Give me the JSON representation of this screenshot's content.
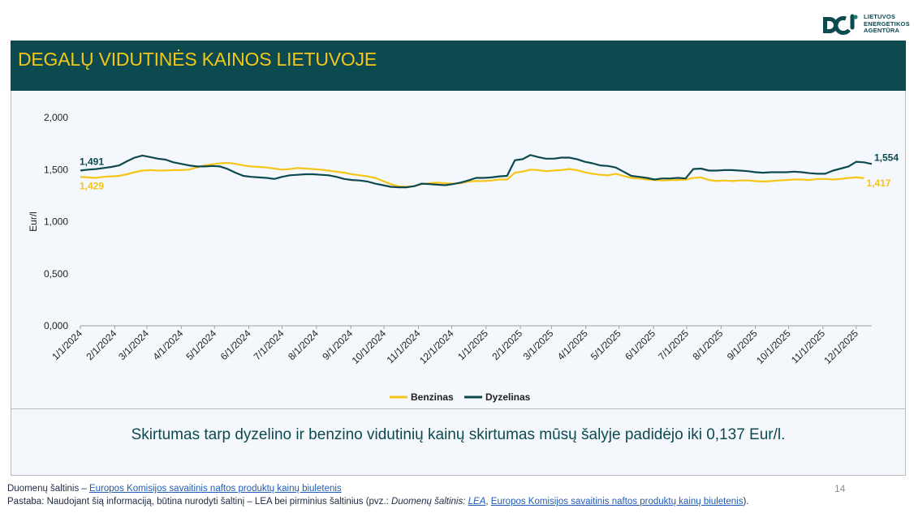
{
  "logo": {
    "line1": "LIETUVOS",
    "line2": "ENERGETIKOS",
    "line3": "AGENTŪRA"
  },
  "header": {
    "title": "DEGALŲ VIDUTINĖS KAINOS LIETUVOJE"
  },
  "chart_data": {
    "type": "line",
    "title": "",
    "xlabel": "",
    "ylabel": "Eur/l",
    "ylim": [
      0,
      2
    ],
    "y_ticks": [
      "0,000",
      "0,500",
      "1,000",
      "1,500",
      "2,000"
    ],
    "y_tick_values": [
      0,
      0.5,
      1,
      1.5,
      2
    ],
    "x_tick_labels": [
      "1/1/2024",
      "2/1/2024",
      "3/1/2024",
      "4/1/2024",
      "5/1/2024",
      "6/1/2024",
      "7/1/2024",
      "8/1/2024",
      "9/1/2024",
      "10/1/2024",
      "11/1/2024",
      "12/1/2024",
      "1/1/2025",
      "2/1/2025",
      "3/1/2025",
      "4/1/2025",
      "5/1/2025",
      "6/1/2025",
      "7/1/2025",
      "8/1/2025",
      "9/1/2025",
      "10/1/2025",
      "11/1/2025",
      "12/1/2025"
    ],
    "grid": false,
    "legend_position": "bottom",
    "series": [
      {
        "name": "Benzinas",
        "color": "#f5c518",
        "start_label": "1,429",
        "end_label": "1,417",
        "points": [
          [
            "2024-01-01",
            1.429
          ],
          [
            "2024-01-08",
            1.425
          ],
          [
            "2024-01-15",
            1.42
          ],
          [
            "2024-01-22",
            1.43
          ],
          [
            "2024-01-29",
            1.435
          ],
          [
            "2024-02-05",
            1.44
          ],
          [
            "2024-02-12",
            1.455
          ],
          [
            "2024-02-19",
            1.475
          ],
          [
            "2024-02-26",
            1.49
          ],
          [
            "2024-03-04",
            1.495
          ],
          [
            "2024-03-11",
            1.49
          ],
          [
            "2024-03-18",
            1.492
          ],
          [
            "2024-03-25",
            1.495
          ],
          [
            "2024-04-01",
            1.495
          ],
          [
            "2024-04-08",
            1.5
          ],
          [
            "2024-04-15",
            1.52
          ],
          [
            "2024-04-22",
            1.54
          ],
          [
            "2024-04-29",
            1.55
          ],
          [
            "2024-05-06",
            1.56
          ],
          [
            "2024-05-13",
            1.565
          ],
          [
            "2024-05-20",
            1.555
          ],
          [
            "2024-05-27",
            1.54
          ],
          [
            "2024-06-03",
            1.53
          ],
          [
            "2024-06-10",
            1.525
          ],
          [
            "2024-06-17",
            1.52
          ],
          [
            "2024-06-24",
            1.51
          ],
          [
            "2024-07-01",
            1.5
          ],
          [
            "2024-07-08",
            1.505
          ],
          [
            "2024-07-15",
            1.515
          ],
          [
            "2024-07-22",
            1.51
          ],
          [
            "2024-07-29",
            1.505
          ],
          [
            "2024-08-05",
            1.5
          ],
          [
            "2024-08-12",
            1.49
          ],
          [
            "2024-08-19",
            1.48
          ],
          [
            "2024-08-26",
            1.47
          ],
          [
            "2024-09-02",
            1.455
          ],
          [
            "2024-09-09",
            1.445
          ],
          [
            "2024-09-16",
            1.435
          ],
          [
            "2024-09-23",
            1.42
          ],
          [
            "2024-09-30",
            1.39
          ],
          [
            "2024-10-07",
            1.36
          ],
          [
            "2024-10-14",
            1.34
          ],
          [
            "2024-10-21",
            1.335
          ],
          [
            "2024-10-28",
            1.34
          ],
          [
            "2024-11-04",
            1.36
          ],
          [
            "2024-11-11",
            1.37
          ],
          [
            "2024-11-18",
            1.375
          ],
          [
            "2024-11-25",
            1.37
          ],
          [
            "2024-12-02",
            1.365
          ],
          [
            "2024-12-09",
            1.37
          ],
          [
            "2024-12-16",
            1.385
          ],
          [
            "2024-12-23",
            1.39
          ],
          [
            "2024-12-30",
            1.39
          ],
          [
            "2025-01-06",
            1.395
          ],
          [
            "2025-01-13",
            1.405
          ],
          [
            "2025-01-20",
            1.405
          ],
          [
            "2025-01-27",
            1.47
          ],
          [
            "2025-02-03",
            1.48
          ],
          [
            "2025-02-10",
            1.5
          ],
          [
            "2025-02-17",
            1.495
          ],
          [
            "2025-02-24",
            1.485
          ],
          [
            "2025-03-03",
            1.49
          ],
          [
            "2025-03-10",
            1.495
          ],
          [
            "2025-03-17",
            1.505
          ],
          [
            "2025-03-24",
            1.495
          ],
          [
            "2025-03-31",
            1.475
          ],
          [
            "2025-04-07",
            1.46
          ],
          [
            "2025-04-14",
            1.45
          ],
          [
            "2025-04-21",
            1.445
          ],
          [
            "2025-04-28",
            1.46
          ],
          [
            "2025-05-05",
            1.44
          ],
          [
            "2025-05-12",
            1.42
          ],
          [
            "2025-05-19",
            1.415
          ],
          [
            "2025-05-26",
            1.405
          ],
          [
            "2025-06-02",
            1.4
          ],
          [
            "2025-06-09",
            1.395
          ],
          [
            "2025-06-16",
            1.4
          ],
          [
            "2025-06-23",
            1.4
          ],
          [
            "2025-06-30",
            1.405
          ],
          [
            "2025-07-07",
            1.42
          ],
          [
            "2025-07-14",
            1.425
          ],
          [
            "2025-07-21",
            1.4
          ],
          [
            "2025-07-28",
            1.39
          ],
          [
            "2025-08-04",
            1.395
          ],
          [
            "2025-08-11",
            1.39
          ],
          [
            "2025-08-18",
            1.395
          ],
          [
            "2025-08-25",
            1.395
          ],
          [
            "2025-09-01",
            1.39
          ],
          [
            "2025-09-08",
            1.385
          ],
          [
            "2025-09-15",
            1.39
          ],
          [
            "2025-09-22",
            1.395
          ],
          [
            "2025-09-29",
            1.4
          ],
          [
            "2025-10-06",
            1.405
          ],
          [
            "2025-10-13",
            1.405
          ],
          [
            "2025-10-20",
            1.4
          ],
          [
            "2025-10-27",
            1.41
          ],
          [
            "2025-11-03",
            1.41
          ],
          [
            "2025-11-10",
            1.405
          ],
          [
            "2025-11-17",
            1.41
          ],
          [
            "2025-11-24",
            1.42
          ],
          [
            "2025-12-01",
            1.425
          ],
          [
            "2025-12-08",
            1.417
          ]
        ]
      },
      {
        "name": "Dyzelinas",
        "color": "#0d4a4f",
        "start_label": "1,491",
        "end_label": "1,554",
        "points": [
          [
            "2024-01-01",
            1.491
          ],
          [
            "2024-01-08",
            1.5
          ],
          [
            "2024-01-15",
            1.505
          ],
          [
            "2024-01-22",
            1.515
          ],
          [
            "2024-01-29",
            1.525
          ],
          [
            "2024-02-05",
            1.54
          ],
          [
            "2024-02-12",
            1.58
          ],
          [
            "2024-02-19",
            1.615
          ],
          [
            "2024-02-26",
            1.635
          ],
          [
            "2024-03-04",
            1.62
          ],
          [
            "2024-03-11",
            1.605
          ],
          [
            "2024-03-18",
            1.595
          ],
          [
            "2024-03-25",
            1.57
          ],
          [
            "2024-04-01",
            1.555
          ],
          [
            "2024-04-08",
            1.54
          ],
          [
            "2024-04-15",
            1.53
          ],
          [
            "2024-04-22",
            1.53
          ],
          [
            "2024-04-29",
            1.535
          ],
          [
            "2024-05-06",
            1.53
          ],
          [
            "2024-05-13",
            1.505
          ],
          [
            "2024-05-20",
            1.47
          ],
          [
            "2024-05-27",
            1.44
          ],
          [
            "2024-06-03",
            1.43
          ],
          [
            "2024-06-10",
            1.425
          ],
          [
            "2024-06-17",
            1.42
          ],
          [
            "2024-06-24",
            1.41
          ],
          [
            "2024-07-01",
            1.43
          ],
          [
            "2024-07-08",
            1.445
          ],
          [
            "2024-07-15",
            1.45
          ],
          [
            "2024-07-22",
            1.455
          ],
          [
            "2024-07-29",
            1.455
          ],
          [
            "2024-08-05",
            1.45
          ],
          [
            "2024-08-12",
            1.445
          ],
          [
            "2024-08-19",
            1.43
          ],
          [
            "2024-08-26",
            1.41
          ],
          [
            "2024-09-02",
            1.4
          ],
          [
            "2024-09-09",
            1.395
          ],
          [
            "2024-09-16",
            1.385
          ],
          [
            "2024-09-23",
            1.365
          ],
          [
            "2024-09-30",
            1.35
          ],
          [
            "2024-10-07",
            1.335
          ],
          [
            "2024-10-14",
            1.33
          ],
          [
            "2024-10-21",
            1.33
          ],
          [
            "2024-10-28",
            1.34
          ],
          [
            "2024-11-04",
            1.365
          ],
          [
            "2024-11-11",
            1.36
          ],
          [
            "2024-11-18",
            1.355
          ],
          [
            "2024-11-25",
            1.35
          ],
          [
            "2024-12-02",
            1.36
          ],
          [
            "2024-12-09",
            1.375
          ],
          [
            "2024-12-16",
            1.395
          ],
          [
            "2024-12-23",
            1.42
          ],
          [
            "2024-12-30",
            1.42
          ],
          [
            "2025-01-06",
            1.425
          ],
          [
            "2025-01-13",
            1.435
          ],
          [
            "2025-01-20",
            1.44
          ],
          [
            "2025-01-27",
            1.59
          ],
          [
            "2025-02-03",
            1.6
          ],
          [
            "2025-02-10",
            1.64
          ],
          [
            "2025-02-17",
            1.62
          ],
          [
            "2025-02-24",
            1.605
          ],
          [
            "2025-03-03",
            1.605
          ],
          [
            "2025-03-10",
            1.615
          ],
          [
            "2025-03-17",
            1.615
          ],
          [
            "2025-03-24",
            1.6
          ],
          [
            "2025-03-31",
            1.575
          ],
          [
            "2025-04-07",
            1.56
          ],
          [
            "2025-04-14",
            1.54
          ],
          [
            "2025-04-21",
            1.535
          ],
          [
            "2025-04-28",
            1.52
          ],
          [
            "2025-05-05",
            1.48
          ],
          [
            "2025-05-12",
            1.44
          ],
          [
            "2025-05-19",
            1.43
          ],
          [
            "2025-05-26",
            1.42
          ],
          [
            "2025-06-02",
            1.405
          ],
          [
            "2025-06-09",
            1.415
          ],
          [
            "2025-06-16",
            1.415
          ],
          [
            "2025-06-23",
            1.42
          ],
          [
            "2025-06-30",
            1.415
          ],
          [
            "2025-07-07",
            1.505
          ],
          [
            "2025-07-14",
            1.51
          ],
          [
            "2025-07-21",
            1.49
          ],
          [
            "2025-07-28",
            1.49
          ],
          [
            "2025-08-04",
            1.495
          ],
          [
            "2025-08-11",
            1.495
          ],
          [
            "2025-08-18",
            1.49
          ],
          [
            "2025-08-25",
            1.485
          ],
          [
            "2025-09-01",
            1.475
          ],
          [
            "2025-09-08",
            1.47
          ],
          [
            "2025-09-15",
            1.475
          ],
          [
            "2025-09-22",
            1.475
          ],
          [
            "2025-09-29",
            1.475
          ],
          [
            "2025-10-06",
            1.48
          ],
          [
            "2025-10-13",
            1.475
          ],
          [
            "2025-10-20",
            1.465
          ],
          [
            "2025-10-27",
            1.46
          ],
          [
            "2025-11-03",
            1.46
          ],
          [
            "2025-11-10",
            1.49
          ],
          [
            "2025-11-17",
            1.51
          ],
          [
            "2025-11-24",
            1.53
          ],
          [
            "2025-12-01",
            1.575
          ],
          [
            "2025-12-08",
            1.57
          ],
          [
            "2025-12-15",
            1.554
          ]
        ]
      }
    ]
  },
  "summary": {
    "text": "Skirtumas tarp dyzelino ir benzino vidutinių kainų skirtumas mūsų šalyje padidėjo iki 0,137 Eur/l."
  },
  "footer": {
    "source_label": "Duomenų šaltinis – ",
    "source_link": "Europos Komisijos savaitinis naftos produktų kainų biuletenis",
    "note_prefix": "Pastaba: Naudojant šią informaciją, būtina nurodyti šaltinį – LEA bei pirminius šaltinius (pvz.: ",
    "note_italic": "Duomenų šaltinis: ",
    "note_link1": "LEA",
    "note_sep": ", ",
    "note_link2": "Europos Komisijos savaitinis naftos produktų kainų biuletenis",
    "note_suffix": ").",
    "page_number": "14"
  }
}
